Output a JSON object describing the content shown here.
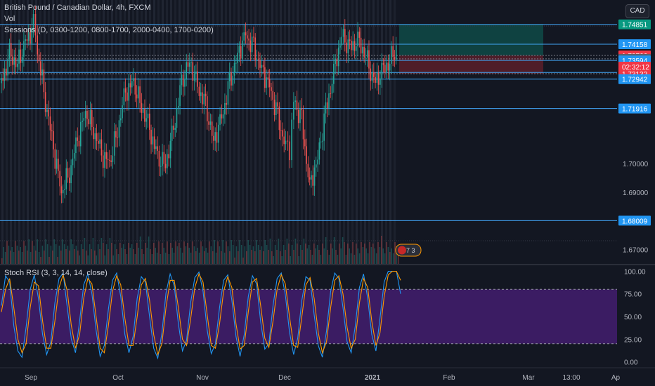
{
  "header": {
    "symbol_line": "British Pound / Canadian Dollar, 4h, FXCM",
    "vol_label": "Vol",
    "sessions_label": "Sessions (D, 0300-1200, 0800-1700, 2000-0400, 1700-0200)",
    "rsi_label": "Stoch RSI (3, 3, 14, 14, close)"
  },
  "currency_button": "CAD",
  "countdown": "02:32:12",
  "event_badge": "7 3",
  "colors": {
    "bg": "#131722",
    "blue_line": "#2962ff",
    "line_blue": "#42a5f5",
    "up": "#26a69a",
    "down": "#ef5350",
    "k_line": "#2196f3",
    "d_line": "#ff9800",
    "rsi_band": "#4a1f7a"
  },
  "chart_data": [
    {
      "type": "line",
      "title": "British Pound / Canadian Dollar, 4h, FXCM",
      "ylim": [
        1.665,
        1.757
      ],
      "x_ticks": [
        "Sep",
        "Oct",
        "Nov",
        "Dec",
        "2021",
        "Feb",
        "Mar",
        "13:00",
        "Ap"
      ],
      "y_ticks": [
        "1.67000",
        "1.68000",
        "1.69000",
        "1.70000"
      ],
      "horizontal_levels": [
        {
          "value": 1.74851,
          "label": "1.74851",
          "color": "#089981"
        },
        {
          "value": 1.74158,
          "label": "1.74158",
          "color": "#2196f3"
        },
        {
          "value": 1.73766,
          "label": "1.73766",
          "color": "#f23645"
        },
        {
          "value": 1.73648,
          "label": "1.73648",
          "color": "#5d606b"
        },
        {
          "value": 1.73594,
          "label": "1.73594",
          "color": "#2196f3"
        },
        {
          "value": 1.73173,
          "label": "1.73173",
          "color": "#2196f3"
        },
        {
          "value": 1.73132,
          "label": "1.73132",
          "color": "#f23645"
        },
        {
          "value": 1.72942,
          "label": "1.72942",
          "color": "#2196f3"
        },
        {
          "value": 1.71916,
          "label": "1.71916",
          "color": "#2196f3"
        },
        {
          "value": 1.68009,
          "label": "1.68009",
          "color": "#2196f3"
        }
      ],
      "position": {
        "entry": 1.73766,
        "target": 1.74851,
        "stop": 1.73132
      },
      "price_path": [
        [
          0,
          1.728
        ],
        [
          2,
          1.738
        ],
        [
          4,
          1.735
        ],
        [
          6,
          1.742
        ],
        [
          8,
          1.748
        ],
        [
          9,
          1.739
        ],
        [
          11,
          1.722
        ],
        [
          13,
          1.705
        ],
        [
          15,
          1.69
        ],
        [
          17,
          1.697
        ],
        [
          19,
          1.708
        ],
        [
          21,
          1.718
        ],
        [
          23,
          1.712
        ],
        [
          25,
          1.703
        ],
        [
          27,
          1.7
        ],
        [
          29,
          1.712
        ],
        [
          31,
          1.725
        ],
        [
          33,
          1.728
        ],
        [
          35,
          1.72
        ],
        [
          37,
          1.712
        ],
        [
          39,
          1.702
        ],
        [
          41,
          1.7
        ],
        [
          43,
          1.712
        ],
        [
          45,
          1.728
        ],
        [
          47,
          1.736
        ],
        [
          49,
          1.727
        ],
        [
          51,
          1.72
        ],
        [
          53,
          1.708
        ],
        [
          55,
          1.716
        ],
        [
          57,
          1.728
        ],
        [
          59,
          1.738
        ],
        [
          61,
          1.745
        ],
        [
          63,
          1.74
        ],
        [
          65,
          1.733
        ],
        [
          67,
          1.727
        ],
        [
          69,
          1.716
        ],
        [
          71,
          1.706
        ],
        [
          72,
          1.705
        ],
        [
          73,
          1.722
        ],
        [
          75,
          1.715
        ],
        [
          77,
          1.692
        ],
        [
          79,
          1.702
        ],
        [
          81,
          1.718
        ],
        [
          83,
          1.732
        ],
        [
          85,
          1.745
        ],
        [
          87,
          1.74
        ],
        [
          89,
          1.743
        ],
        [
          91,
          1.738
        ],
        [
          93,
          1.728
        ],
        [
          95,
          1.732
        ],
        [
          97,
          1.736
        ],
        [
          99,
          1.741
        ]
      ],
      "price_path_x_range": [
        0,
        99
      ]
    },
    {
      "type": "line",
      "title": "Stoch RSI (3, 3, 14, 14, close)",
      "ylim": [
        -5,
        105
      ],
      "y_ticks": [
        "100.00",
        "75.00",
        "50.00",
        "25.00",
        "0.00"
      ],
      "bands": {
        "upper": 80,
        "lower": 20
      },
      "series": [
        {
          "name": "K",
          "values": [
            62,
            95,
            88,
            40,
            12,
            5,
            38,
            80,
            96,
            70,
            30,
            8,
            22,
            65,
            92,
            98,
            60,
            25,
            10,
            45,
            85,
            97,
            75,
            35,
            6,
            18,
            58,
            90,
            98,
            72,
            30,
            10,
            28,
            70,
            94,
            88,
            50,
            15,
            4,
            32,
            76,
            97,
            84,
            42,
            12,
            24,
            66,
            93,
            99,
            78,
            35,
            9,
            20,
            60,
            90,
            96,
            68,
            28,
            6,
            30,
            72,
            95,
            86,
            44,
            14,
            20,
            62,
            92,
            98,
            74,
            33,
            8,
            26,
            68,
            94,
            90,
            52,
            18,
            5,
            34,
            78,
            98,
            92,
            60,
            22,
            10,
            40,
            82,
            97,
            70,
            30,
            12,
            48,
            88,
            100,
            100,
            100,
            75
          ]
        },
        {
          "name": "D",
          "values": [
            55,
            80,
            92,
            60,
            25,
            10,
            20,
            60,
            88,
            84,
            45,
            15,
            15,
            45,
            82,
            96,
            78,
            40,
            15,
            30,
            70,
            92,
            86,
            50,
            15,
            10,
            40,
            78,
            95,
            85,
            48,
            18,
            18,
            50,
            85,
            92,
            68,
            30,
            8,
            20,
            60,
            90,
            90,
            60,
            25,
            18,
            48,
            82,
            97,
            88,
            52,
            18,
            15,
            42,
            78,
            94,
            82,
            42,
            14,
            18,
            55,
            88,
            92,
            62,
            26,
            16,
            45,
            80,
            96,
            86,
            50,
            18,
            16,
            50,
            85,
            93,
            70,
            32,
            10,
            22,
            60,
            90,
            95,
            75,
            38,
            15,
            25,
            65,
            92,
            82,
            45,
            18,
            32,
            72,
            96,
            100,
            100,
            90
          ]
        }
      ]
    }
  ]
}
